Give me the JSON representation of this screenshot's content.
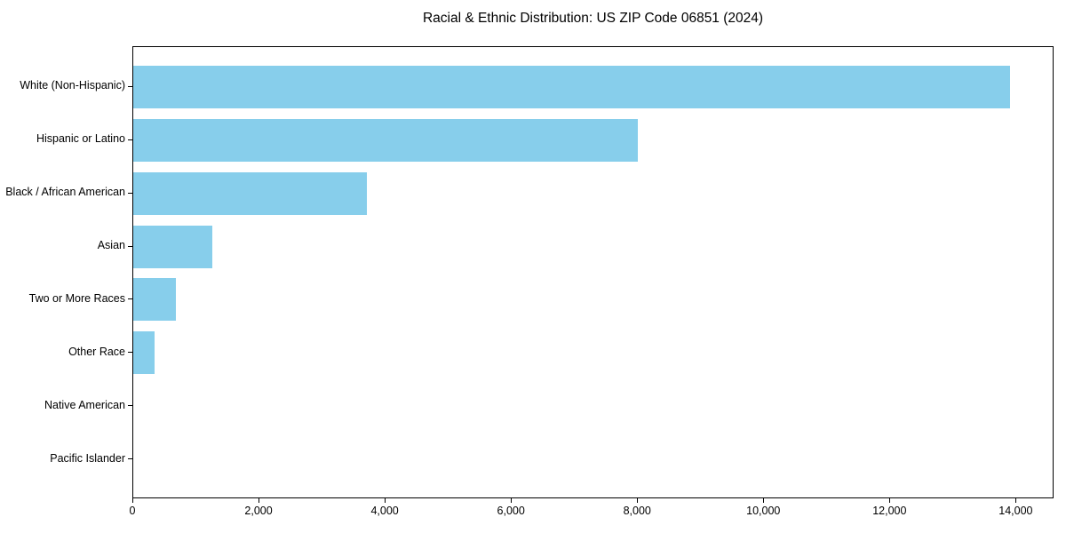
{
  "chart_data": {
    "type": "bar",
    "orientation": "horizontal",
    "title": "Racial & Ethnic Distribution: US ZIP Code 06851 (2024)",
    "categories": [
      "White (Non-Hispanic)",
      "Hispanic or Latino",
      "Black / African American",
      "Asian",
      "Two or More Races",
      "Other Race",
      "Native American",
      "Pacific Islander"
    ],
    "values": [
      13900,
      8000,
      3700,
      1250,
      680,
      340,
      0,
      0
    ],
    "xlabel": "",
    "ylabel": "",
    "xlim": [
      0,
      14600
    ],
    "x_ticks": [
      0,
      2000,
      4000,
      6000,
      8000,
      10000,
      12000,
      14000
    ],
    "x_tick_labels": [
      "0",
      "2,000",
      "4,000",
      "6,000",
      "8,000",
      "10,000",
      "12,000",
      "14,000"
    ],
    "bar_color": "#87CEEB",
    "background_color": "#FFFFFF",
    "axis_color": "#000000",
    "grid": false,
    "legend": false
  }
}
